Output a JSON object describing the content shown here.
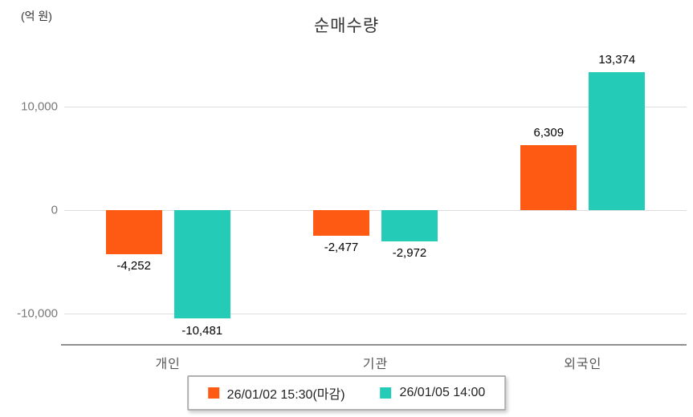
{
  "chart_data": {
    "type": "bar",
    "title": "순매수량",
    "unit_label": "(억 원)",
    "categories": [
      "개인",
      "기관",
      "외국인"
    ],
    "series": [
      {
        "name": "26/01/02 15:30(마감)",
        "color": "#FF5A14",
        "values": [
          -4252,
          -2477,
          6309
        ],
        "labels": [
          "-4,252",
          "-2,477",
          "6,309"
        ]
      },
      {
        "name": "26/01/05 14:00",
        "color": "#24CBB7",
        "values": [
          -10481,
          -2972,
          13374
        ],
        "labels": [
          "-10,481",
          "-2,972",
          "13,374"
        ]
      }
    ],
    "y_ticks": [
      {
        "value": 10000,
        "label": "10,000"
      },
      {
        "value": 0,
        "label": "0"
      },
      {
        "value": -10000,
        "label": "-10,000"
      }
    ],
    "ylim": [
      -13000,
      14900
    ],
    "grid": true,
    "legend_position": "bottom"
  }
}
